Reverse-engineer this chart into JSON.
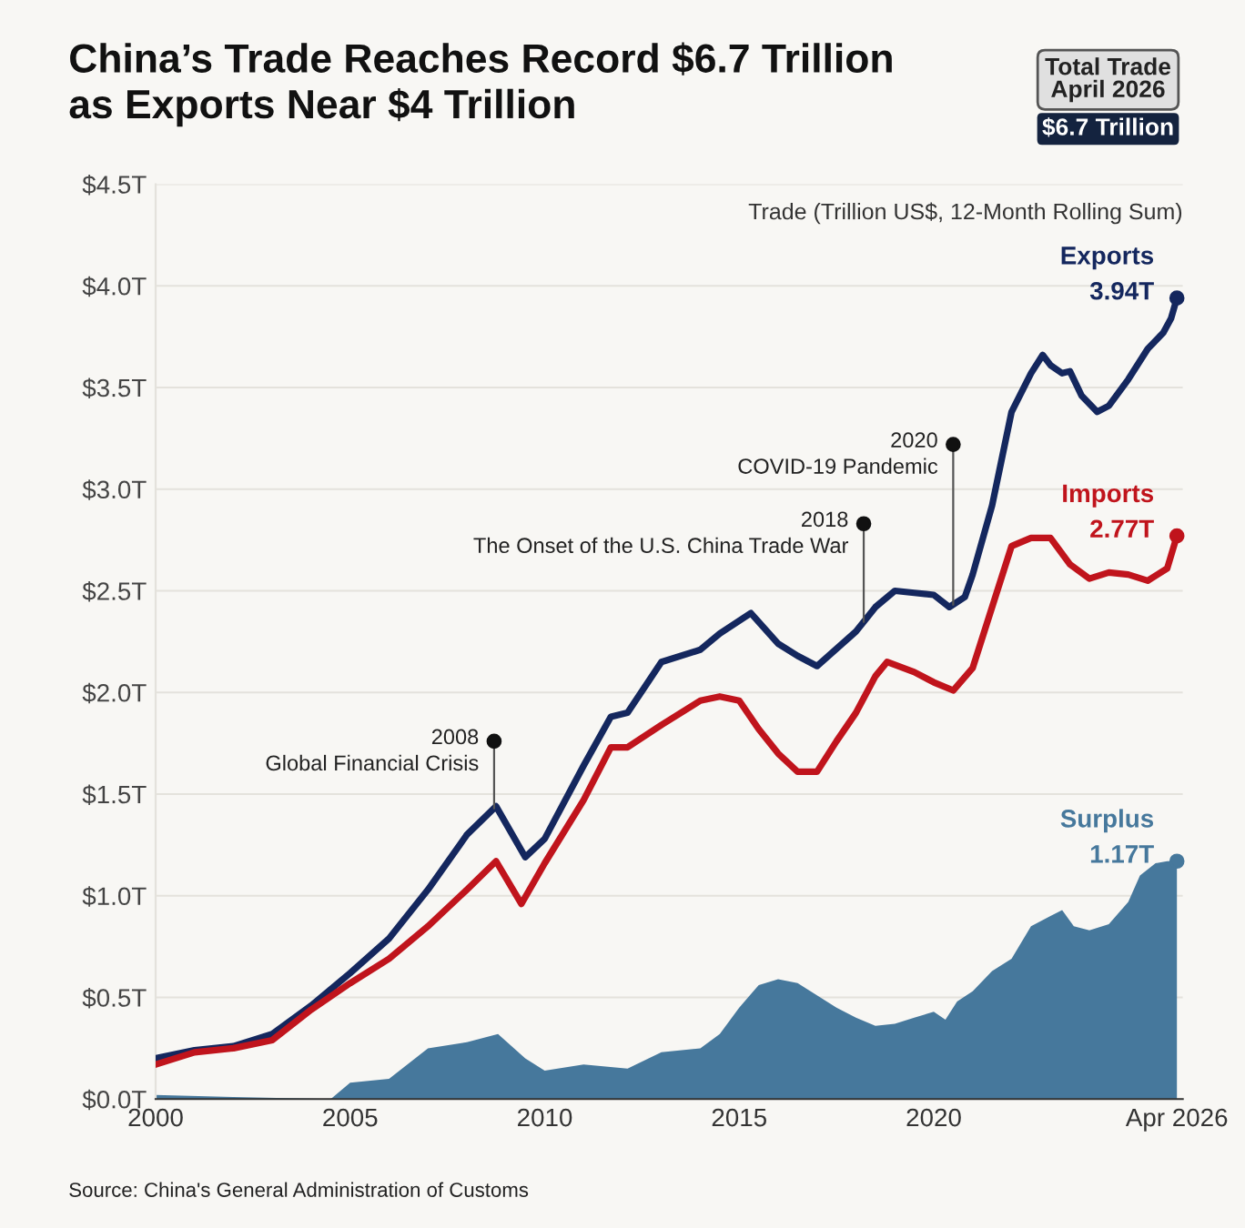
{
  "chart_data": {
    "type": "line",
    "title": "China’s Trade Reaches Record $6.7 Trillion\nas Exports Near $4 Trillion",
    "ylabel": "Trade (Trillion US$, 12-Month Rolling Sum)",
    "xlim": [
      2000,
      2026.4
    ],
    "xticks": [
      2000,
      2005,
      2010,
      2015,
      2020,
      {
        "value": 2026.25,
        "label": "Apr 2026"
      }
    ],
    "ylim": [
      0,
      4.5
    ],
    "yticks": [
      {
        "value": 0,
        "label": "$0.0T"
      },
      {
        "value": 0.5,
        "label": "$0.5T"
      },
      {
        "value": 1.0,
        "label": "$1.0T"
      },
      {
        "value": 1.5,
        "label": "$1.5T"
      },
      {
        "value": 2.0,
        "label": "$2.0T"
      },
      {
        "value": 2.5,
        "label": "$2.5T"
      },
      {
        "value": 3.0,
        "label": "$3.0T"
      },
      {
        "value": 3.5,
        "label": "$3.5T"
      },
      {
        "value": 4.0,
        "label": "$4.0T"
      },
      {
        "value": 4.5,
        "label": "$4.5T"
      }
    ],
    "grid": "y",
    "legend": false,
    "marker": "none",
    "line_style": "solid",
    "series": [
      {
        "name": "Exports",
        "color": "#14275e",
        "x": [
          2000,
          2001,
          2002,
          2003,
          2004,
          2005,
          2006,
          2007,
          2008,
          2008.75,
          2009.5,
          2010,
          2011,
          2011.7,
          2012.13,
          2013,
          2014,
          2014.5,
          2015.3,
          2016,
          2016.5,
          2017,
          2018,
          2018.5,
          2019,
          2019.5,
          2020,
          2020.4,
          2020.8,
          2021,
          2021.5,
          2022,
          2022.5,
          2022.8,
          2023,
          2023.3,
          2023.5,
          2023.8,
          2024.2,
          2024.5,
          2025,
          2025.5,
          2025.9,
          2026.1,
          2026.25
        ],
        "values": [
          0.2,
          0.24,
          0.26,
          0.32,
          0.46,
          0.62,
          0.79,
          1.03,
          1.3,
          1.44,
          1.19,
          1.28,
          1.64,
          1.88,
          1.9,
          2.15,
          2.21,
          2.29,
          2.39,
          2.24,
          2.18,
          2.13,
          2.3,
          2.42,
          2.5,
          2.49,
          2.48,
          2.42,
          2.47,
          2.58,
          2.92,
          3.38,
          3.57,
          3.66,
          3.61,
          3.57,
          3.58,
          3.46,
          3.38,
          3.41,
          3.54,
          3.69,
          3.77,
          3.84,
          3.94
        ],
        "value_labels": [
          null,
          null,
          null,
          null,
          null,
          null,
          null,
          null,
          null,
          null,
          null,
          null,
          null,
          null,
          null,
          null,
          null,
          null,
          null,
          null,
          null,
          null,
          null,
          null,
          null,
          null,
          null,
          null,
          null,
          null,
          null,
          null,
          null,
          null,
          null,
          null,
          null,
          null,
          null,
          null,
          null,
          null,
          null,
          null,
          "3.94T"
        ]
      },
      {
        "name": "Imports",
        "color": "#c0141c",
        "x": [
          2000,
          2001,
          2002,
          2003,
          2004,
          2005,
          2006,
          2007,
          2008,
          2008.75,
          2009.4,
          2010,
          2011,
          2011.7,
          2012.13,
          2013,
          2014,
          2014.5,
          2015,
          2015.5,
          2016,
          2016.5,
          2017,
          2017.5,
          2018,
          2018.5,
          2018.8,
          2019.5,
          2020,
          2020.5,
          2021,
          2021.5,
          2022,
          2022.5,
          2023,
          2023.5,
          2024,
          2024.5,
          2025,
          2025.5,
          2026,
          2026.25
        ],
        "values": [
          0.17,
          0.23,
          0.25,
          0.29,
          0.44,
          0.57,
          0.69,
          0.85,
          1.03,
          1.17,
          0.96,
          1.16,
          1.47,
          1.73,
          1.73,
          1.84,
          1.96,
          1.98,
          1.96,
          1.82,
          1.7,
          1.61,
          1.61,
          1.76,
          1.9,
          2.08,
          2.15,
          2.1,
          2.05,
          2.01,
          2.12,
          2.42,
          2.72,
          2.76,
          2.76,
          2.63,
          2.56,
          2.59,
          2.58,
          2.55,
          2.61,
          2.77
        ],
        "value_labels": [
          null,
          null,
          null,
          null,
          null,
          null,
          null,
          null,
          null,
          null,
          null,
          null,
          null,
          null,
          null,
          null,
          null,
          null,
          null,
          null,
          null,
          null,
          null,
          null,
          null,
          null,
          null,
          null,
          null,
          null,
          null,
          null,
          null,
          null,
          null,
          null,
          null,
          null,
          null,
          null,
          null,
          "2.77T"
        ]
      },
      {
        "name": "Surplus",
        "type": "area",
        "color": "#46789c",
        "x": [
          2000,
          2002,
          2004.5,
          2005,
          2006,
          2007,
          2008,
          2008.8,
          2009.5,
          2010,
          2011,
          2012.13,
          2013,
          2014,
          2014.5,
          2015,
          2015.5,
          2016,
          2016.5,
          2017,
          2017.5,
          2018,
          2018.5,
          2019,
          2019.5,
          2020,
          2020.3,
          2020.6,
          2021,
          2021.5,
          2022,
          2022.5,
          2023,
          2023.3,
          2023.6,
          2024,
          2024.5,
          2025,
          2025.3,
          2025.7,
          2026,
          2026.25
        ],
        "values": [
          0.02,
          0.01,
          0.0,
          0.08,
          0.1,
          0.25,
          0.28,
          0.32,
          0.2,
          0.14,
          0.17,
          0.15,
          0.23,
          0.25,
          0.32,
          0.45,
          0.56,
          0.59,
          0.57,
          0.51,
          0.45,
          0.4,
          0.36,
          0.37,
          0.4,
          0.43,
          0.39,
          0.48,
          0.53,
          0.63,
          0.69,
          0.85,
          0.9,
          0.93,
          0.85,
          0.83,
          0.86,
          0.97,
          1.1,
          1.16,
          1.17,
          1.17
        ],
        "value_labels": [
          null,
          null,
          null,
          null,
          null,
          null,
          null,
          null,
          null,
          null,
          null,
          null,
          null,
          null,
          null,
          null,
          null,
          null,
          null,
          null,
          null,
          null,
          null,
          null,
          null,
          null,
          null,
          null,
          null,
          null,
          null,
          null,
          null,
          null,
          null,
          null,
          null,
          null,
          null,
          null,
          null,
          "1.17T"
        ]
      }
    ],
    "annotations": [
      "Source: China's General Administration of Customs",
      "Total Trade\nApril 2026",
      "$6.7 Trillion",
      {
        "text": "2008\nGlobal Financial Crisis",
        "x": 2008.7,
        "y": 1.76
      },
      {
        "text": "2018\nThe Onset of the U.S. China Trade War",
        "x": 2018.2,
        "y": 2.83
      },
      {
        "text": "2020\nCOVID-19 Pandemic",
        "x": 2020.5,
        "y": 3.22
      }
    ]
  }
}
